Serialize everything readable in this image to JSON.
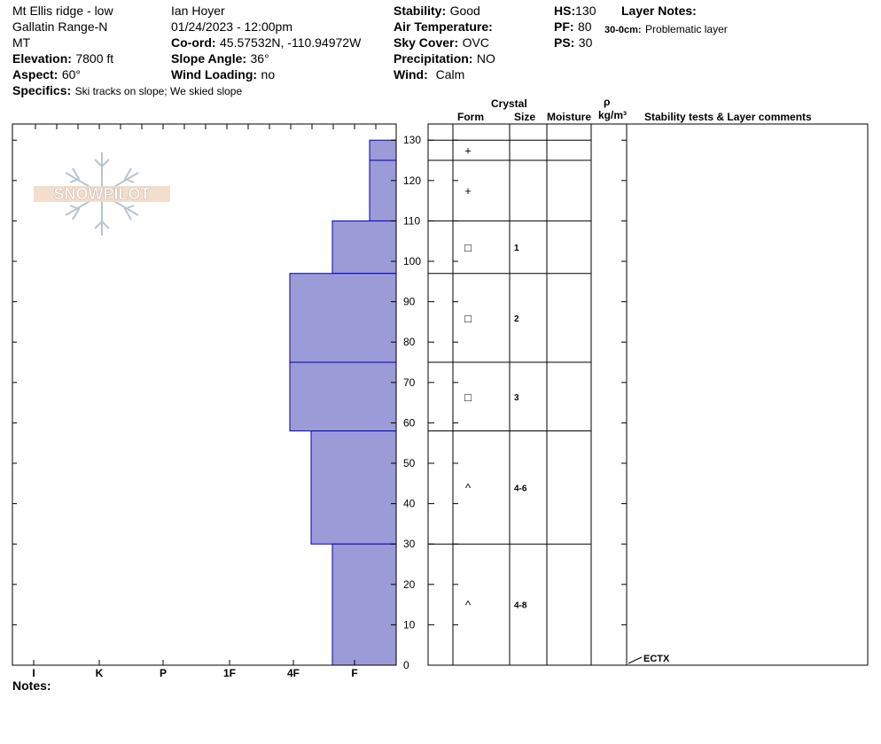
{
  "header": {
    "location": "Mt Ellis ridge - low",
    "range": "Gallatin Range-N",
    "state": "MT",
    "elevation_label": "Elevation:",
    "elevation_value": "7800 ft",
    "aspect_label": "Aspect:",
    "aspect_value": "60°",
    "specifics_label": "Specifics:",
    "specifics_value": "Ski tracks on slope; We skied slope",
    "observer": "Ian Hoyer",
    "datetime": "01/24/2023 - 12:00pm",
    "coord_label": "Co-ord:",
    "coord_value": "45.57532N, -110.94972W",
    "slope_label": "Slope Angle:",
    "slope_value": "36°",
    "wind_loading_label": "Wind Loading:",
    "wind_loading_value": "no",
    "stability_label": "Stability:",
    "stability_value": "Good",
    "air_temp_label": "Air Temperature:",
    "air_temp_value": "",
    "sky_label": "Sky Cover:",
    "sky_value": "OVC",
    "precip_label": "Precipitation:",
    "precip_value": "NO",
    "wind_label": "Wind:",
    "wind_value": "Calm",
    "hs_label": "HS:",
    "hs_value": "130",
    "pf_label": "PF:",
    "pf_value": "80",
    "ps_label": "PS:",
    "ps_value": "30",
    "layer_notes_label": "Layer Notes:",
    "layer_note_range": "30-0cm:",
    "layer_note_text": "Problematic layer"
  },
  "logo_text": "SNOWPILOT",
  "notes_label": "Notes:",
  "columns": {
    "crystal": "Crystal",
    "form": "Form",
    "size": "Size",
    "moisture": "Moisture",
    "rho": "ρ",
    "density_unit": "kg/m³",
    "stability_comments": "Stability tests & Layer comments"
  },
  "test_result": "ECTX",
  "colors": {
    "hardness_fill": "#9b9bd7",
    "hardness_stroke": "#0000c0"
  },
  "chart_data": {
    "type": "bar",
    "ylim": [
      0,
      130
    ],
    "yticks": [
      0,
      10,
      20,
      30,
      40,
      50,
      60,
      70,
      80,
      90,
      100,
      110,
      120,
      130
    ],
    "hardness_scale": [
      "I",
      "K",
      "P",
      "1F",
      "4F",
      "F"
    ],
    "layers": [
      {
        "top": 130,
        "bottom": 125,
        "hardness": 0.25,
        "form": "+",
        "size": ""
      },
      {
        "top": 125,
        "bottom": 110,
        "hardness": 0.25,
        "form": "+",
        "size": ""
      },
      {
        "top": 110,
        "bottom": 97,
        "hardness": 0.6,
        "form": "□",
        "size": "1"
      },
      {
        "top": 97,
        "bottom": 75,
        "hardness": 1.0,
        "form": "□",
        "size": "2"
      },
      {
        "top": 75,
        "bottom": 58,
        "hardness": 1.0,
        "form": "□",
        "size": "3"
      },
      {
        "top": 58,
        "bottom": 30,
        "hardness": 0.8,
        "form": "^",
        "size": "4-6"
      },
      {
        "top": 30,
        "bottom": 0,
        "hardness": 0.6,
        "form": "^",
        "size": "4-8"
      }
    ],
    "test_depth": 0
  }
}
